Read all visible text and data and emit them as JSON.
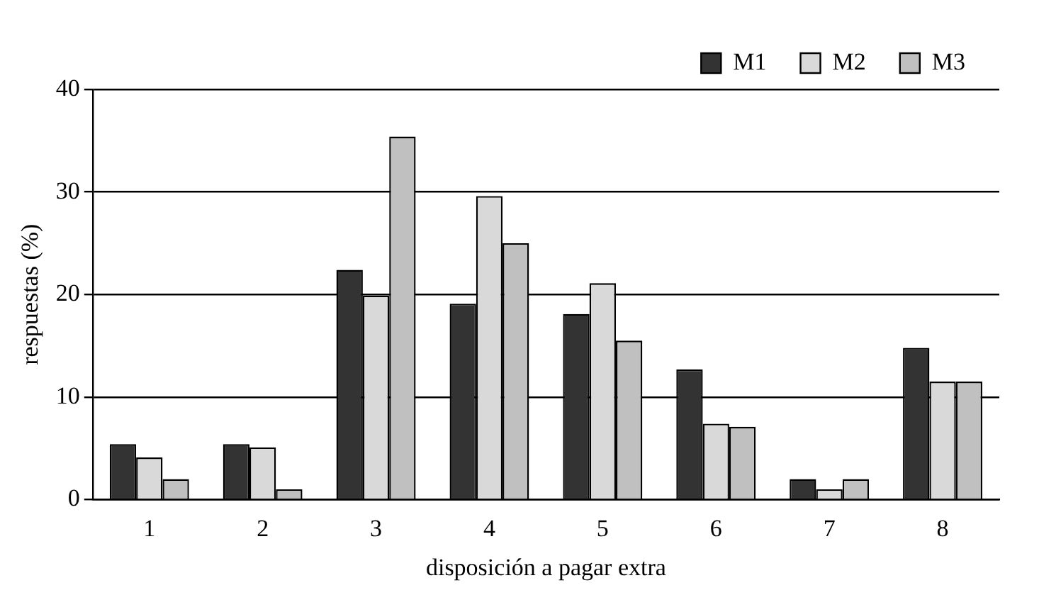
{
  "chart_data": {
    "type": "bar",
    "xlabel": "disposición a pagar extra",
    "ylabel": "respuestas (%)",
    "categories": [
      "1",
      "2",
      "3",
      "4",
      "5",
      "6",
      "7",
      "8"
    ],
    "series": [
      {
        "name": "M1",
        "color": "#333333",
        "values": [
          5.4,
          5.4,
          22.4,
          19.1,
          18.1,
          12.7,
          2.0,
          14.8
        ]
      },
      {
        "name": "M2",
        "color": "#d9d9d9",
        "values": [
          4.1,
          5.1,
          19.9,
          29.6,
          21.1,
          7.4,
          1.0,
          11.5
        ]
      },
      {
        "name": "M3",
        "color": "#c0c0c0",
        "values": [
          2.0,
          1.0,
          35.4,
          25.0,
          15.5,
          7.1,
          2.0,
          11.5
        ]
      }
    ],
    "ylim": [
      0,
      40
    ],
    "yticks": [
      0,
      10,
      20,
      30,
      40
    ],
    "grid": "y",
    "legend": "top right"
  }
}
